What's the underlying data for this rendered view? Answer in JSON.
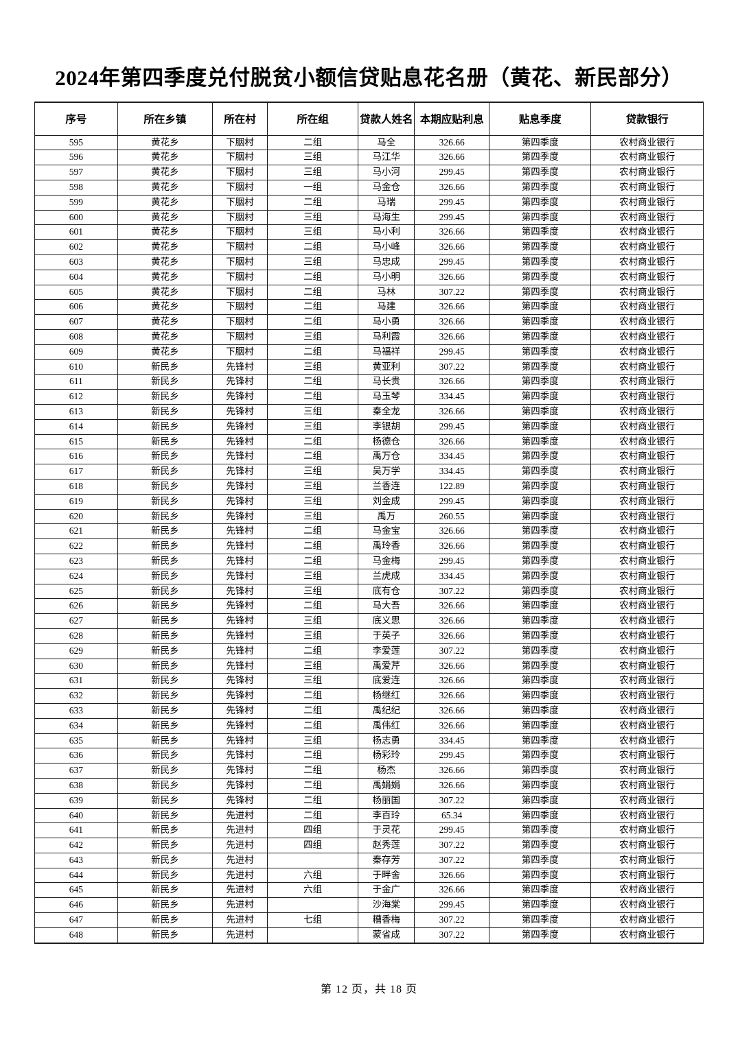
{
  "doc": {
    "title": "2024年第四季度兑付脱贫小额信贷贴息花名册（黄花、新民部分）",
    "footer": "第 12 页，共 18 页"
  },
  "colors": {
    "text": "#000000",
    "border": "#1c1c1c",
    "background": "#ffffff"
  },
  "table": {
    "columns": [
      "序号",
      "所在乡镇",
      "所在村",
      "所在组",
      "贷款人姓名",
      "本期应贴利息",
      "贴息季度",
      "贷款银行"
    ],
    "rows": [
      [
        "595",
        "黄花乡",
        "下胭村",
        "二组",
        "马全",
        "326.66",
        "第四季度",
        "农村商业银行"
      ],
      [
        "596",
        "黄花乡",
        "下胭村",
        "三组",
        "马江华",
        "326.66",
        "第四季度",
        "农村商业银行"
      ],
      [
        "597",
        "黄花乡",
        "下胭村",
        "三组",
        "马小河",
        "299.45",
        "第四季度",
        "农村商业银行"
      ],
      [
        "598",
        "黄花乡",
        "下胭村",
        "一组",
        "马金仓",
        "326.66",
        "第四季度",
        "农村商业银行"
      ],
      [
        "599",
        "黄花乡",
        "下胭村",
        "二组",
        "马瑞",
        "299.45",
        "第四季度",
        "农村商业银行"
      ],
      [
        "600",
        "黄花乡",
        "下胭村",
        "三组",
        "马海生",
        "299.45",
        "第四季度",
        "农村商业银行"
      ],
      [
        "601",
        "黄花乡",
        "下胭村",
        "三组",
        "马小利",
        "326.66",
        "第四季度",
        "农村商业银行"
      ],
      [
        "602",
        "黄花乡",
        "下胭村",
        "二组",
        "马小峰",
        "326.66",
        "第四季度",
        "农村商业银行"
      ],
      [
        "603",
        "黄花乡",
        "下胭村",
        "三组",
        "马忠成",
        "299.45",
        "第四季度",
        "农村商业银行"
      ],
      [
        "604",
        "黄花乡",
        "下胭村",
        "二组",
        "马小明",
        "326.66",
        "第四季度",
        "农村商业银行"
      ],
      [
        "605",
        "黄花乡",
        "下胭村",
        "二组",
        "马林",
        "307.22",
        "第四季度",
        "农村商业银行"
      ],
      [
        "606",
        "黄花乡",
        "下胭村",
        "二组",
        "马建",
        "326.66",
        "第四季度",
        "农村商业银行"
      ],
      [
        "607",
        "黄花乡",
        "下胭村",
        "二组",
        "马小勇",
        "326.66",
        "第四季度",
        "农村商业银行"
      ],
      [
        "608",
        "黄花乡",
        "下胭村",
        "三组",
        "马利霞",
        "326.66",
        "第四季度",
        "农村商业银行"
      ],
      [
        "609",
        "黄花乡",
        "下胭村",
        "二组",
        "马福祥",
        "299.45",
        "第四季度",
        "农村商业银行"
      ],
      [
        "610",
        "新民乡",
        "先锋村",
        "三组",
        "黄亚利",
        "307.22",
        "第四季度",
        "农村商业银行"
      ],
      [
        "611",
        "新民乡",
        "先锋村",
        "二组",
        "马长贵",
        "326.66",
        "第四季度",
        "农村商业银行"
      ],
      [
        "612",
        "新民乡",
        "先锋村",
        "二组",
        "马玉琴",
        "334.45",
        "第四季度",
        "农村商业银行"
      ],
      [
        "613",
        "新民乡",
        "先锋村",
        "三组",
        "秦全龙",
        "326.66",
        "第四季度",
        "农村商业银行"
      ],
      [
        "614",
        "新民乡",
        "先锋村",
        "三组",
        "李银胡",
        "299.45",
        "第四季度",
        "农村商业银行"
      ],
      [
        "615",
        "新民乡",
        "先锋村",
        "二组",
        "杨德仓",
        "326.66",
        "第四季度",
        "农村商业银行"
      ],
      [
        "616",
        "新民乡",
        "先锋村",
        "二组",
        "禹万仓",
        "334.45",
        "第四季度",
        "农村商业银行"
      ],
      [
        "617",
        "新民乡",
        "先锋村",
        "三组",
        "吴万学",
        "334.45",
        "第四季度",
        "农村商业银行"
      ],
      [
        "618",
        "新民乡",
        "先锋村",
        "三组",
        "兰香连",
        "122.89",
        "第四季度",
        "农村商业银行"
      ],
      [
        "619",
        "新民乡",
        "先锋村",
        "三组",
        "刘金成",
        "299.45",
        "第四季度",
        "农村商业银行"
      ],
      [
        "620",
        "新民乡",
        "先锋村",
        "三组",
        "禹万",
        "260.55",
        "第四季度",
        "农村商业银行"
      ],
      [
        "621",
        "新民乡",
        "先锋村",
        "二组",
        "马金宝",
        "326.66",
        "第四季度",
        "农村商业银行"
      ],
      [
        "622",
        "新民乡",
        "先锋村",
        "二组",
        "禹玲香",
        "326.66",
        "第四季度",
        "农村商业银行"
      ],
      [
        "623",
        "新民乡",
        "先锋村",
        "二组",
        "马金梅",
        "299.45",
        "第四季度",
        "农村商业银行"
      ],
      [
        "624",
        "新民乡",
        "先锋村",
        "三组",
        "兰虎成",
        "334.45",
        "第四季度",
        "农村商业银行"
      ],
      [
        "625",
        "新民乡",
        "先锋村",
        "三组",
        "底有仓",
        "307.22",
        "第四季度",
        "农村商业银行"
      ],
      [
        "626",
        "新民乡",
        "先锋村",
        "二组",
        "马大吾",
        "326.66",
        "第四季度",
        "农村商业银行"
      ],
      [
        "627",
        "新民乡",
        "先锋村",
        "三组",
        "底义思",
        "326.66",
        "第四季度",
        "农村商业银行"
      ],
      [
        "628",
        "新民乡",
        "先锋村",
        "三组",
        "于英子",
        "326.66",
        "第四季度",
        "农村商业银行"
      ],
      [
        "629",
        "新民乡",
        "先锋村",
        "二组",
        "李爱莲",
        "307.22",
        "第四季度",
        "农村商业银行"
      ],
      [
        "630",
        "新民乡",
        "先锋村",
        "三组",
        "禹爱芹",
        "326.66",
        "第四季度",
        "农村商业银行"
      ],
      [
        "631",
        "新民乡",
        "先锋村",
        "三组",
        "底爱连",
        "326.66",
        "第四季度",
        "农村商业银行"
      ],
      [
        "632",
        "新民乡",
        "先锋村",
        "二组",
        "杨继红",
        "326.66",
        "第四季度",
        "农村商业银行"
      ],
      [
        "633",
        "新民乡",
        "先锋村",
        "二组",
        "禹纪纪",
        "326.66",
        "第四季度",
        "农村商业银行"
      ],
      [
        "634",
        "新民乡",
        "先锋村",
        "二组",
        "禹伟红",
        "326.66",
        "第四季度",
        "农村商业银行"
      ],
      [
        "635",
        "新民乡",
        "先锋村",
        "三组",
        "杨志勇",
        "334.45",
        "第四季度",
        "农村商业银行"
      ],
      [
        "636",
        "新民乡",
        "先锋村",
        "二组",
        "杨彩玲",
        "299.45",
        "第四季度",
        "农村商业银行"
      ],
      [
        "637",
        "新民乡",
        "先锋村",
        "二组",
        "杨杰",
        "326.66",
        "第四季度",
        "农村商业银行"
      ],
      [
        "638",
        "新民乡",
        "先锋村",
        "二组",
        "禹娟娟",
        "326.66",
        "第四季度",
        "农村商业银行"
      ],
      [
        "639",
        "新民乡",
        "先锋村",
        "二组",
        "杨丽国",
        "307.22",
        "第四季度",
        "农村商业银行"
      ],
      [
        "640",
        "新民乡",
        "先进村",
        "二组",
        "李百玲",
        "65.34",
        "第四季度",
        "农村商业银行"
      ],
      [
        "641",
        "新民乡",
        "先进村",
        "四组",
        "于灵花",
        "299.45",
        "第四季度",
        "农村商业银行"
      ],
      [
        "642",
        "新民乡",
        "先进村",
        "四组",
        "赵秀莲",
        "307.22",
        "第四季度",
        "农村商业银行"
      ],
      [
        "643",
        "新民乡",
        "先进村",
        "",
        "秦存芳",
        "307.22",
        "第四季度",
        "农村商业银行"
      ],
      [
        "644",
        "新民乡",
        "先进村",
        "六组",
        "于畔舍",
        "326.66",
        "第四季度",
        "农村商业银行"
      ],
      [
        "645",
        "新民乡",
        "先进村",
        "六组",
        "于金广",
        "326.66",
        "第四季度",
        "农村商业银行"
      ],
      [
        "646",
        "新民乡",
        "先进村",
        "",
        "沙海棠",
        "299.45",
        "第四季度",
        "农村商业银行"
      ],
      [
        "647",
        "新民乡",
        "先进村",
        "七组",
        "糟香梅",
        "307.22",
        "第四季度",
        "农村商业银行"
      ],
      [
        "648",
        "新民乡",
        "先进村",
        "",
        "蒙省成",
        "307.22",
        "第四季度",
        "农村商业银行"
      ]
    ]
  }
}
